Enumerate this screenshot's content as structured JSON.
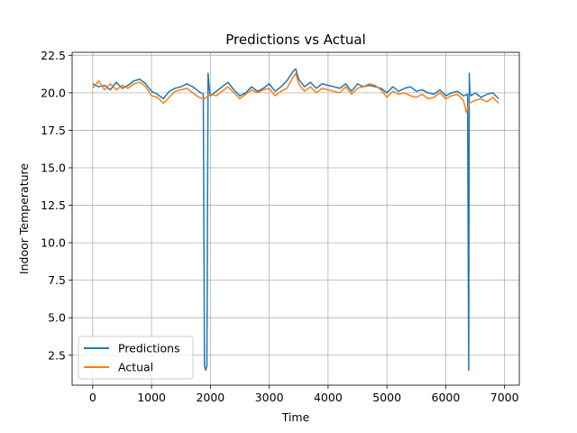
{
  "chart_data": {
    "type": "line",
    "title": "Predictions vs Actual",
    "xlabel": "Time",
    "ylabel": "Indoor Temperature",
    "xlim": [
      -350,
      7250
    ],
    "ylim": [
      0.5,
      22.7
    ],
    "x_ticks": [
      0,
      1000,
      2000,
      3000,
      4000,
      5000,
      6000,
      7000
    ],
    "x_tick_labels": [
      "0",
      "1000",
      "2000",
      "3000",
      "4000",
      "5000",
      "6000",
      "7000"
    ],
    "y_ticks": [
      2.5,
      5.0,
      7.5,
      10.0,
      12.5,
      15.0,
      17.5,
      20.0,
      22.5
    ],
    "y_tick_labels": [
      "2.5",
      "5.0",
      "7.5",
      "10.0",
      "12.5",
      "15.0",
      "17.5",
      "20.0",
      "22.5"
    ],
    "grid": true,
    "legend_position": "lower-left",
    "colors": {
      "predictions": "#1f77b4",
      "actual": "#ff7f0e"
    },
    "series": [
      {
        "name": "Predictions",
        "x": [
          0,
          100,
          200,
          300,
          400,
          500,
          600,
          700,
          800,
          900,
          1000,
          1100,
          1200,
          1300,
          1400,
          1500,
          1600,
          1700,
          1800,
          1880,
          1900,
          1920,
          1940,
          1960,
          1980,
          2000,
          2100,
          2200,
          2300,
          2400,
          2500,
          2600,
          2700,
          2800,
          2900,
          3000,
          3100,
          3200,
          3300,
          3400,
          3450,
          3500,
          3600,
          3700,
          3800,
          3900,
          4000,
          4100,
          4200,
          4300,
          4400,
          4500,
          4600,
          4700,
          4800,
          4900,
          5000,
          5100,
          5200,
          5300,
          5400,
          5500,
          5600,
          5700,
          5800,
          5900,
          6000,
          6100,
          6200,
          6300,
          6370,
          6390,
          6400,
          6410,
          6430,
          6500,
          6600,
          6700,
          6800,
          6900
        ],
        "y": [
          20.6,
          20.4,
          20.5,
          20.2,
          20.7,
          20.3,
          20.5,
          20.8,
          20.9,
          20.6,
          20.1,
          19.9,
          19.6,
          20.1,
          20.3,
          20.4,
          20.6,
          20.4,
          20.1,
          19.9,
          1.8,
          1.5,
          1.8,
          21.3,
          20.3,
          19.8,
          20.1,
          20.4,
          20.7,
          20.2,
          19.8,
          20.0,
          20.4,
          20.1,
          20.3,
          20.6,
          20.1,
          20.4,
          20.8,
          21.4,
          21.6,
          20.9,
          20.4,
          20.7,
          20.3,
          20.6,
          20.5,
          20.4,
          20.3,
          20.6,
          20.1,
          20.6,
          20.4,
          20.5,
          20.4,
          20.3,
          20.0,
          20.4,
          20.1,
          20.3,
          20.4,
          20.1,
          20.2,
          20.0,
          19.9,
          20.2,
          19.8,
          20.0,
          20.1,
          19.8,
          19.9,
          1.5,
          21.3,
          20.0,
          19.8,
          20.0,
          19.7,
          19.9,
          20.0,
          19.6
        ]
      },
      {
        "name": "Actual",
        "x": [
          0,
          100,
          200,
          300,
          400,
          500,
          600,
          700,
          800,
          900,
          1000,
          1100,
          1200,
          1300,
          1400,
          1500,
          1600,
          1700,
          1800,
          1900,
          2000,
          2100,
          2200,
          2300,
          2400,
          2500,
          2600,
          2700,
          2800,
          2900,
          3000,
          3100,
          3200,
          3300,
          3400,
          3450,
          3500,
          3600,
          3700,
          3800,
          3900,
          4000,
          4100,
          4200,
          4300,
          4400,
          4500,
          4600,
          4700,
          4800,
          4900,
          5000,
          5100,
          5200,
          5300,
          5400,
          5500,
          5600,
          5700,
          5800,
          5900,
          6000,
          6100,
          6200,
          6300,
          6350,
          6400,
          6500,
          6600,
          6700,
          6800,
          6900
        ],
        "y": [
          20.3,
          20.8,
          20.2,
          20.6,
          20.2,
          20.5,
          20.3,
          20.6,
          20.7,
          20.4,
          19.8,
          19.7,
          19.3,
          19.7,
          20.1,
          20.2,
          20.3,
          20.0,
          19.7,
          19.6,
          19.9,
          19.8,
          20.1,
          20.4,
          20.0,
          19.6,
          19.9,
          20.2,
          20.0,
          20.2,
          20.3,
          19.8,
          20.1,
          20.3,
          21.0,
          21.3,
          20.6,
          20.1,
          20.4,
          20.0,
          20.3,
          20.2,
          20.1,
          20.0,
          20.4,
          19.9,
          20.3,
          20.4,
          20.6,
          20.5,
          20.2,
          19.7,
          20.1,
          19.9,
          20.0,
          19.8,
          19.7,
          19.9,
          19.6,
          19.7,
          20.0,
          19.6,
          19.8,
          19.9,
          19.5,
          18.7,
          19.3,
          19.5,
          19.6,
          19.4,
          19.7,
          19.3
        ]
      }
    ]
  }
}
